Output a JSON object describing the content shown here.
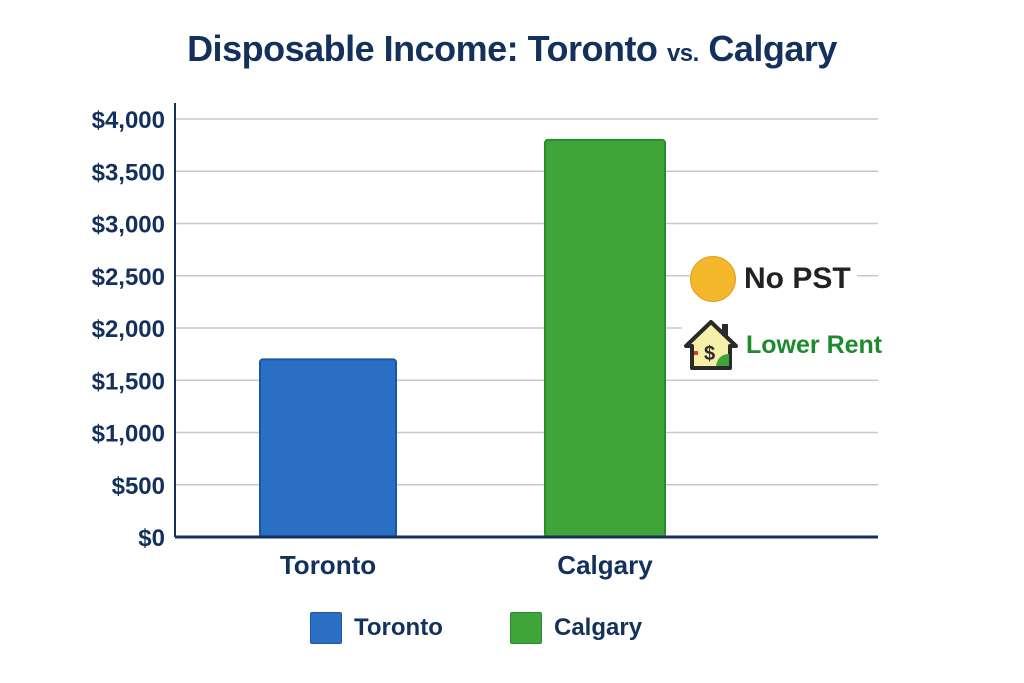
{
  "chart_data": {
    "type": "bar",
    "title": "Disposable Income: Toronto",
    "title_vs": "vs.",
    "title_end": "Calgary",
    "categories": [
      "Toronto",
      "Calgary"
    ],
    "values": [
      1700,
      3800
    ],
    "colors": [
      "#2b6fc4",
      "#3fa53a"
    ],
    "xlabel": "",
    "ylabel": "",
    "ylim": [
      0,
      4000
    ],
    "yticks": [
      0,
      500,
      1000,
      1500,
      2000,
      2500,
      3000,
      3500,
      4000
    ],
    "ytick_labels": [
      "$0",
      "$500",
      "$1,000",
      "$1,500",
      "$2,000",
      "$2,500",
      "$3,000",
      "$3,500",
      "$4,000"
    ],
    "grid": true,
    "legend": {
      "placement": "bottom",
      "entries": [
        "Toronto",
        "Calgary"
      ]
    },
    "annotations": [
      {
        "text": "No PST",
        "icon": "gold-coin-icon",
        "color": "#222222"
      },
      {
        "text": "Lower Rent",
        "icon": "house-dollar-icon",
        "color": "#1e8a2e"
      }
    ]
  }
}
